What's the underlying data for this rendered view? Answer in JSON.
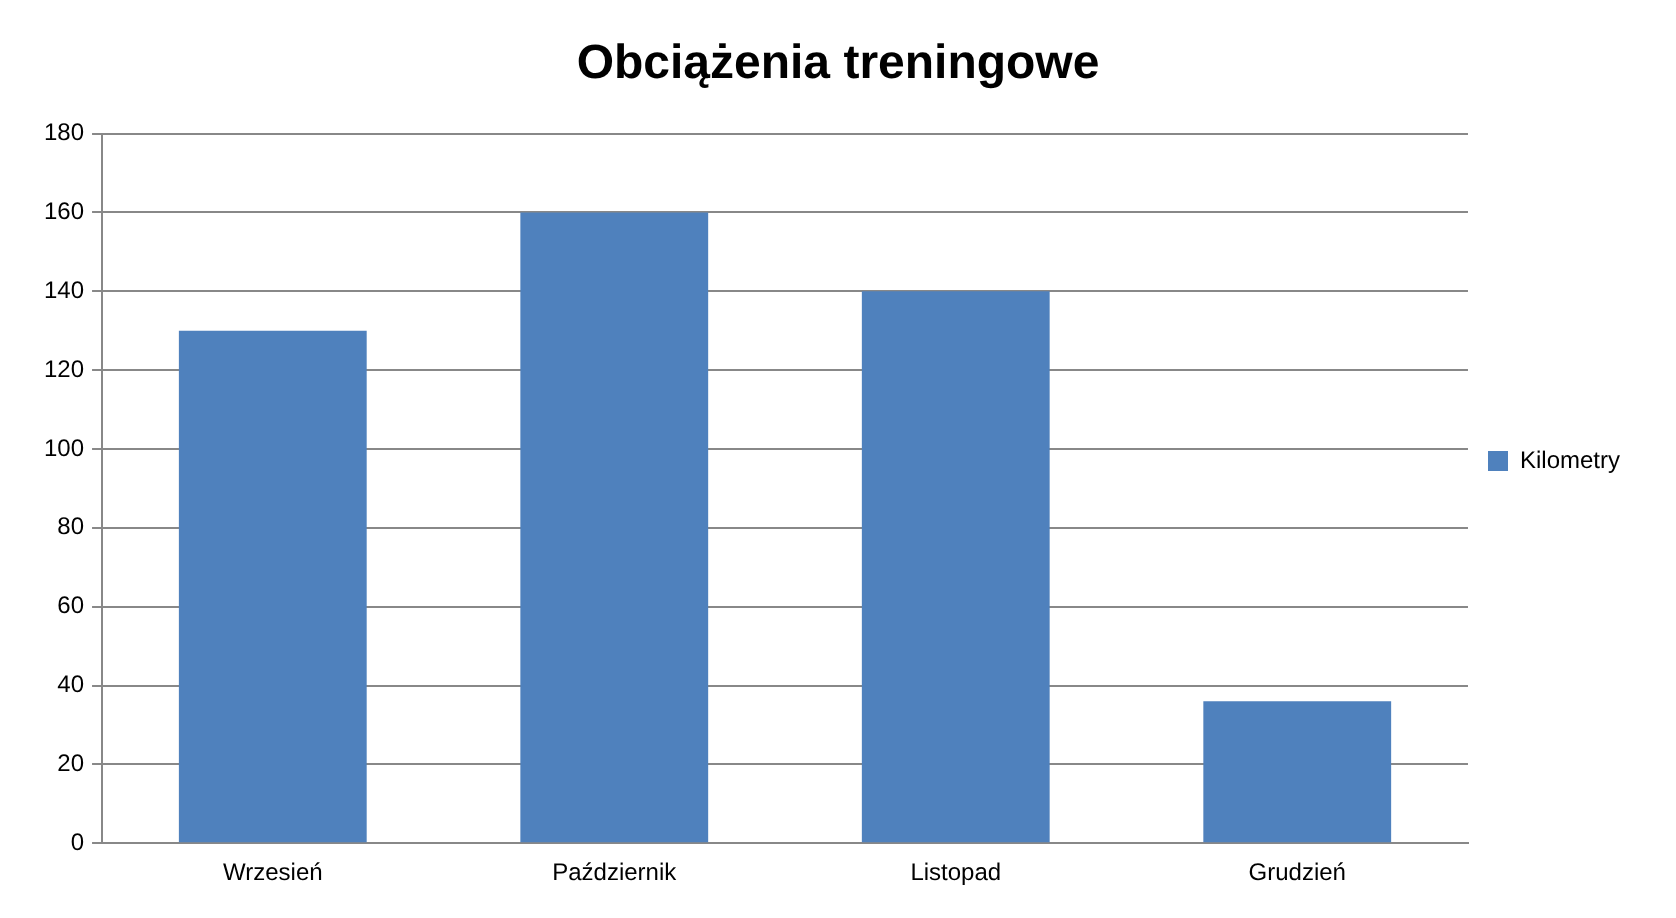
{
  "chart_data": {
    "type": "bar",
    "title": "Obciążenia treningowe",
    "categories": [
      "Wrzesień",
      "Październik",
      "Listopad",
      "Grudzień"
    ],
    "series": [
      {
        "name": "Kilometry",
        "color": "#4f81bd",
        "values": [
          130,
          160,
          140,
          36
        ]
      }
    ],
    "ylim": [
      0,
      180
    ],
    "yticks": [
      0,
      20,
      40,
      60,
      80,
      100,
      120,
      140,
      160,
      180
    ],
    "grid": "y",
    "legend": "right"
  }
}
